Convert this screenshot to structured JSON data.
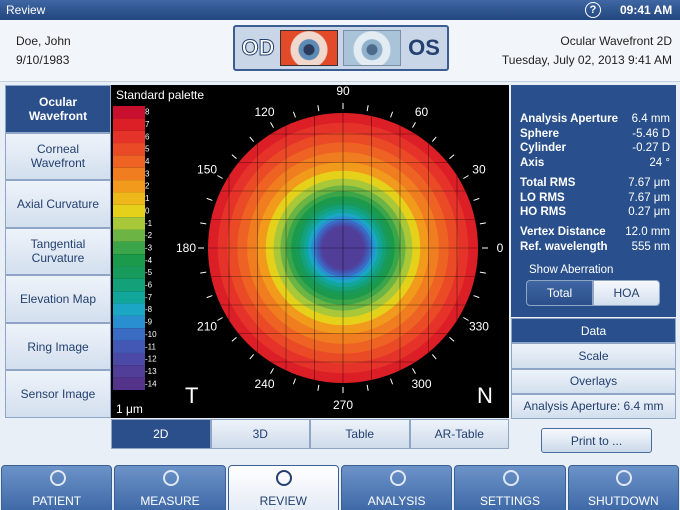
{
  "top_bar": {
    "title": "Review",
    "help": "?",
    "time": "09:41 AM"
  },
  "patient": {
    "name": "Doe, John",
    "dob": "9/10/1983"
  },
  "eyes": {
    "od": "OD",
    "os": "OS"
  },
  "exam": {
    "title": "Ocular Wavefront 2D",
    "datetime": "Tuesday, July 02, 2013 9:41 AM"
  },
  "side_nav": [
    "Ocular Wavefront",
    "Corneal Wavefront",
    "Axial Curvature",
    "Tangential Curvature",
    "Elevation Map",
    "Ring Image",
    "Sensor Image"
  ],
  "map": {
    "palette_title": "Standard palette",
    "unit": "1 μm",
    "palette": [
      {
        "label": "8",
        "color": "#c8102e"
      },
      {
        "label": "7",
        "color": "#dc1f26"
      },
      {
        "label": "6",
        "color": "#e6332a"
      },
      {
        "label": "5",
        "color": "#ea4a26"
      },
      {
        "label": "4",
        "color": "#ee6323"
      },
      {
        "label": "3",
        "color": "#f07d1f"
      },
      {
        "label": "2",
        "color": "#f29a1c"
      },
      {
        "label": "1",
        "color": "#efb81a"
      },
      {
        "label": "0",
        "color": "#e6d11a"
      },
      {
        "label": "-1",
        "color": "#a8c83a"
      },
      {
        "label": "-2",
        "color": "#6cb544"
      },
      {
        "label": "-3",
        "color": "#3ba54a"
      },
      {
        "label": "-4",
        "color": "#1c9a4b"
      },
      {
        "label": "-5",
        "color": "#189a5c"
      },
      {
        "label": "-6",
        "color": "#14a079"
      },
      {
        "label": "-7",
        "color": "#12a69a"
      },
      {
        "label": "-8",
        "color": "#1aa6c4"
      },
      {
        "label": "-9",
        "color": "#2a8fd0"
      },
      {
        "label": "-10",
        "color": "#3a6cc4"
      },
      {
        "label": "-11",
        "color": "#4258b4"
      },
      {
        "label": "-12",
        "color": "#4a4aa6"
      },
      {
        "label": "-13",
        "color": "#503e98"
      },
      {
        "label": "-14",
        "color": "#54348a"
      }
    ],
    "angles": [
      "90",
      "60",
      "30",
      "0",
      "330",
      "300",
      "270",
      "240",
      "210",
      "180",
      "150",
      "120"
    ],
    "temporal": "T",
    "nasal": "N"
  },
  "view_tabs": [
    "2D",
    "3D",
    "Table",
    "AR-Table"
  ],
  "stats": [
    [
      {
        "label": "Analysis Aperture",
        "value": "6.4 mm"
      },
      {
        "label": "Sphere",
        "value": "-5.46 D"
      },
      {
        "label": "Cylinder",
        "value": "-0.27 D"
      },
      {
        "label": "Axis",
        "value": "24 °"
      }
    ],
    [
      {
        "label": "Total RMS",
        "value": "7.67 μm"
      },
      {
        "label": "LO RMS",
        "value": "7.67 μm"
      },
      {
        "label": "HO RMS",
        "value": "0.27 μm"
      }
    ],
    [
      {
        "label": "Vertex Distance",
        "value": "12.0 mm"
      },
      {
        "label": "Ref. wavelength",
        "value": "555 nm"
      }
    ]
  ],
  "aberration": {
    "title": "Show Aberration",
    "options": [
      "Total",
      "HOA"
    ]
  },
  "right_menu": [
    "Data",
    "Scale",
    "Overlays",
    "Analysis Aperture: 6.4 mm"
  ],
  "print": "Print to ...",
  "bottom_nav": [
    "PATIENT",
    "MEASURE",
    "REVIEW",
    "ANALYSIS",
    "SETTINGS",
    "SHUTDOWN"
  ]
}
